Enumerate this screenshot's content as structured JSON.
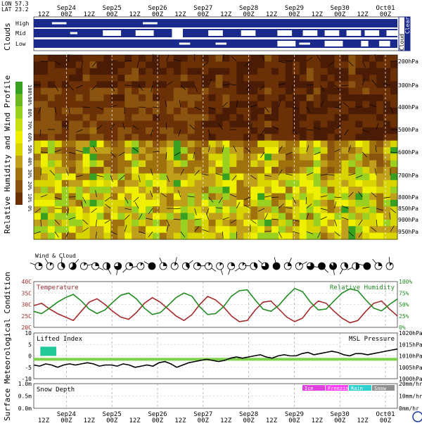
{
  "location": {
    "lon_label": "LON 57.3",
    "lat_label": "LAT 23.2"
  },
  "time_axis": {
    "labels": [
      {
        "hour": "12Z",
        "date": ""
      },
      {
        "hour": "00Z",
        "date": "Sep24"
      },
      {
        "hour": "12Z",
        "date": ""
      },
      {
        "hour": "00Z",
        "date": "Sep25"
      },
      {
        "hour": "12Z",
        "date": ""
      },
      {
        "hour": "00Z",
        "date": "Sep26"
      },
      {
        "hour": "12Z",
        "date": ""
      },
      {
        "hour": "00Z",
        "date": "Sep27"
      },
      {
        "hour": "12Z",
        "date": ""
      },
      {
        "hour": "00Z",
        "date": "Sep28"
      },
      {
        "hour": "12Z",
        "date": ""
      },
      {
        "hour": "00Z",
        "date": "Sep29"
      },
      {
        "hour": "12Z",
        "date": ""
      },
      {
        "hour": "00Z",
        "date": "Sep30"
      },
      {
        "hour": "12Z",
        "date": ""
      },
      {
        "hour": "00Z",
        "date": "Oct01"
      }
    ]
  },
  "clouds": {
    "section_label": "Clouds",
    "rows": [
      {
        "label": "High",
        "segments": [
          [
            0.05,
            0.09,
            "thin"
          ],
          [
            0.3,
            0.34,
            "thin"
          ]
        ]
      },
      {
        "label": "Mid",
        "segments": [
          [
            0.1,
            0.12,
            "thin"
          ],
          [
            0.19,
            0.24,
            "thick"
          ],
          [
            0.28,
            0.33,
            "thick"
          ],
          [
            0.38,
            0.41,
            "block"
          ],
          [
            0.48,
            0.52,
            "thick"
          ],
          [
            0.57,
            0.61,
            "thick"
          ],
          [
            0.67,
            0.71,
            "thick"
          ],
          [
            0.74,
            0.78,
            "thick"
          ],
          [
            0.8,
            0.84,
            "thick"
          ],
          [
            0.86,
            0.9,
            "thick"
          ],
          [
            0.91,
            0.95,
            "thick"
          ],
          [
            0.97,
            1.0,
            "thick"
          ]
        ]
      },
      {
        "label": "Low",
        "segments": [
          [
            0.4,
            0.43,
            "thin"
          ],
          [
            0.5,
            0.53,
            "thin"
          ],
          [
            0.67,
            0.72,
            "thick"
          ],
          [
            0.73,
            0.76,
            "thin"
          ],
          [
            0.8,
            0.85,
            "thick"
          ],
          [
            0.9,
            0.92,
            "thick"
          ],
          [
            0.95,
            0.98,
            "thick"
          ]
        ]
      }
    ],
    "side_labels": [
      "Cloud",
      "Clear"
    ]
  },
  "humidity_profile": {
    "section_label": "Relative Humidity and Wind Profile",
    "levels": [
      "200hPa",
      "300hPa",
      "400hPa",
      "500hPa",
      "600hPa",
      "700hPa",
      "800hPa",
      "850hPa",
      "900hPa",
      "950hPa"
    ],
    "scale_labels": [
      "100%",
      "90%",
      "80%",
      "70%",
      "60%",
      "50%",
      "40%",
      "30%",
      "20%",
      "10%",
      "0%"
    ]
  },
  "wind_cloud": {
    "label": "Wind & Cloud",
    "cover_eighths": [
      2,
      1,
      3,
      5,
      1,
      2,
      4,
      6,
      2,
      1,
      8,
      2,
      1,
      3,
      2,
      1,
      1,
      2,
      1,
      3,
      6,
      8,
      2,
      1,
      6,
      8,
      7,
      3,
      4,
      8,
      2,
      1
    ]
  },
  "surface_section_label": "Surface Meteorological Condition",
  "chart_data": [
    {
      "type": "line",
      "title": "Temperature",
      "y_right_label": "Relative Humidity",
      "x_range": [
        0,
        1
      ],
      "y_ticks_left": [
        "40C",
        "35C",
        "30C",
        "25C",
        "20C"
      ],
      "y_ticks_right": [
        "100%",
        "75%",
        "50%",
        "25%",
        "0%"
      ],
      "ylim_left": [
        20,
        40
      ],
      "ylim_right": [
        0,
        100
      ],
      "series": [
        {
          "name": "Temperature",
          "color": "#a52a2a",
          "axis": "left",
          "values": [
            29.5,
            30.5,
            28,
            26,
            24.5,
            23,
            27,
            31,
            32.5,
            30,
            27,
            24.5,
            23.5,
            26.5,
            30.5,
            33,
            31,
            28,
            25,
            23,
            25.5,
            30,
            33.5,
            32,
            29,
            25,
            22.5,
            23,
            27.5,
            31,
            31.5,
            28,
            24.5,
            22.5,
            24,
            28.5,
            31.5,
            30.5,
            27,
            24,
            22,
            23,
            27,
            30.5,
            31.5,
            28,
            25
          ]
        },
        {
          "name": "Relative Humidity",
          "color": "#228b22",
          "axis": "right",
          "values": [
            35,
            30,
            42,
            55,
            65,
            72,
            58,
            40,
            30,
            38,
            55,
            70,
            75,
            62,
            42,
            28,
            32,
            48,
            65,
            75,
            68,
            45,
            28,
            30,
            45,
            68,
            80,
            82,
            60,
            40,
            35,
            48,
            68,
            85,
            78,
            55,
            38,
            40,
            58,
            75,
            84,
            80,
            60,
            42,
            36,
            50,
            62
          ]
        }
      ]
    },
    {
      "type": "line",
      "title": "Lifted Index",
      "y_right_label": "MSL Pressure",
      "y_ticks_left": [
        "10",
        "5",
        "0",
        "-5",
        "-10"
      ],
      "y_ticks_right": [
        "1020hPa",
        "1015hPa",
        "1010hPa",
        "1005hPa",
        "1000hPa"
      ],
      "ylim_left": [
        -10,
        10
      ],
      "ylim_right": [
        1000,
        1020
      ],
      "series": [
        {
          "name": "MSL Pressure",
          "color": "#000000",
          "axis": "right",
          "values": [
            1006,
            1005.5,
            1006.5,
            1006,
            1005,
            1006,
            1006.5,
            1006,
            1006.5,
            1007,
            1006.5,
            1005.5,
            1006,
            1006,
            1005.5,
            1006.5,
            1006,
            1005,
            1005.5,
            1006,
            1005.5,
            1007,
            1007.5,
            1006.5,
            1005,
            1006,
            1007,
            1007.5,
            1008,
            1008.5,
            1008,
            1007.5,
            1008,
            1009,
            1009.5,
            1009,
            1009.5,
            1010,
            1010.5,
            1009.5,
            1009,
            1010,
            1010.5,
            1010,
            1010,
            1011,
            1011.5,
            1010.5,
            1011,
            1011.5,
            1012,
            1011.5,
            1010.5,
            1010,
            1011,
            1011,
            1010.5,
            1011,
            1011.5,
            1012,
            1012.5,
            1013
          ]
        },
        {
          "name": "Lifted Index",
          "color": "#7cd24a",
          "axis": "left",
          "values": [
            -1.5,
            -1.5,
            -1.5,
            -1.5,
            -1.5,
            -1.5,
            -1.5,
            -1.5,
            -1.5,
            -1.5,
            -1.5,
            -1.5,
            -1.5,
            -1.5,
            -1.5,
            -1.5,
            -1.5,
            -1.5,
            -1.5,
            -1.5,
            -1.5,
            -1.5,
            -1.5,
            -1.5,
            -1.5,
            -1.5,
            -1.5,
            -1.5,
            -1.5,
            -1.5,
            -1.5,
            -1.5
          ]
        }
      ],
      "bars": {
        "color": "#20c997",
        "segments": [
          [
            0.018,
            0.062,
            4.0
          ]
        ]
      }
    },
    {
      "type": "bar",
      "title": "Snow Depth",
      "y_ticks_left": [
        "1.0m",
        "0.5m",
        "0.0m"
      ],
      "y_ticks_right": [
        "20mm/hr",
        "10mm/hr",
        "0mm/hr"
      ],
      "legend": [
        {
          "name": "Ice",
          "color": "#e040e0"
        },
        {
          "name": "Freezing",
          "color": "#ff40ff"
        },
        {
          "name": "Rain",
          "color": "#30d0d0"
        },
        {
          "name": "Snow",
          "color": "#909090"
        }
      ]
    }
  ]
}
